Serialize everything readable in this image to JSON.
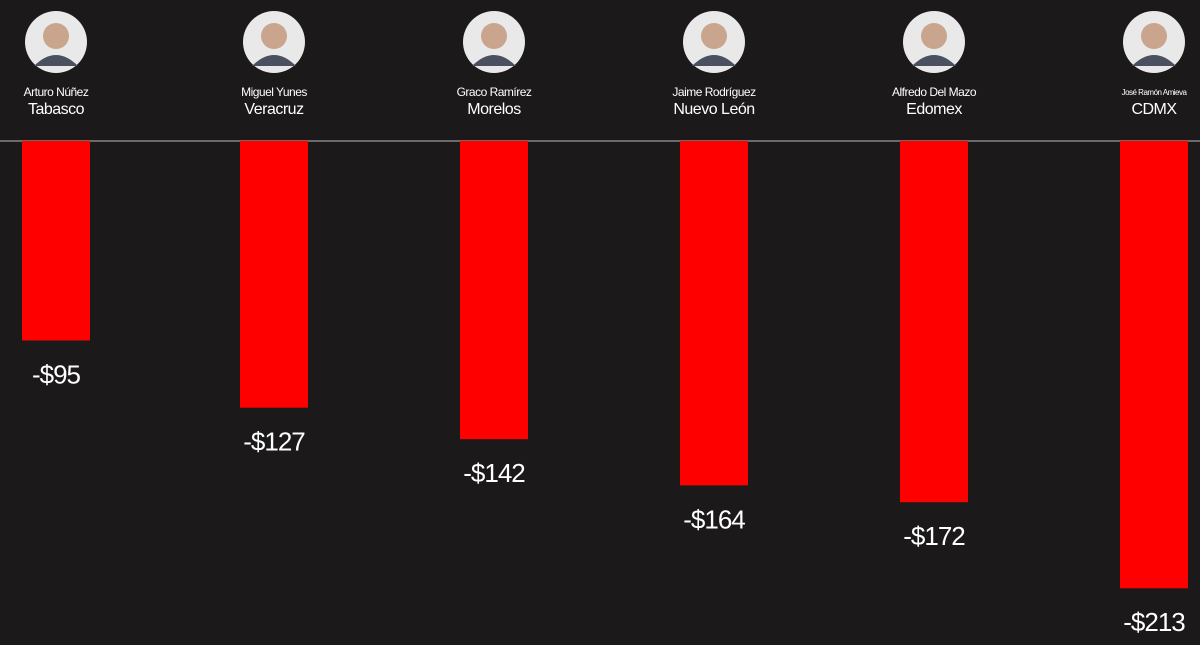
{
  "chart_data": {
    "type": "bar",
    "categories": [
      "Tabasco",
      "Veracruz",
      "Morelos",
      "Nuevo León",
      "Edomex",
      "CDMX"
    ],
    "people": [
      "Arturo Núñez",
      "Miguel Yunes",
      "Graco Ramírez",
      "Jaime Rodríguez",
      "Alfredo Del Mazo",
      "José Ramón Amieva"
    ],
    "values": [
      -95,
      -127,
      -142,
      -164,
      -172,
      -213
    ],
    "value_labels": [
      "-$95",
      "-$127",
      "-$142",
      "-$164",
      "-$172",
      "-$213"
    ],
    "color": "#ff0000"
  }
}
